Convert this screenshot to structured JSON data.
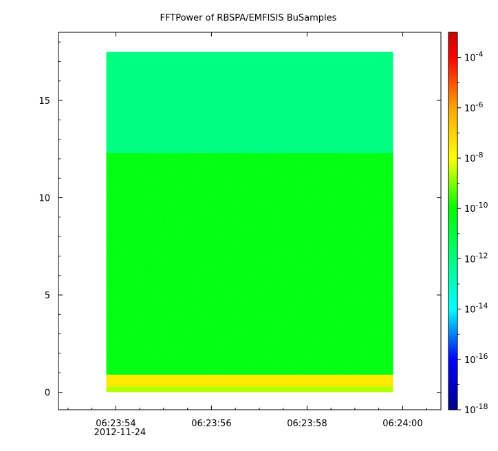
{
  "chart_data": {
    "type": "heatmap",
    "title": "FFTPower of RBSPA/EMFISIS  BuSamples",
    "xlabel": "",
    "ylabel": "",
    "x_ticks": [
      {
        "label": "06:23:54",
        "sublabel": "2012-11-24",
        "t": 54
      },
      {
        "label": "06:23:56",
        "t": 56
      },
      {
        "label": "06:23:58",
        "t": 58
      },
      {
        "label": "06:24:00",
        "t": 60
      }
    ],
    "xlim": [
      "06:23:52.8",
      "06:24:00.8"
    ],
    "ylim": [
      -0.9,
      18.5
    ],
    "y_ticks": [
      0,
      5,
      10,
      15
    ],
    "data_extent": {
      "x": [
        "06:23:53.8",
        "06:23:59.8"
      ],
      "y": [
        0,
        17.5
      ]
    },
    "colorbar": {
      "scale": "log",
      "range": [
        1e-18,
        0.001
      ],
      "ticks": [
        {
          "base": "10",
          "exp": "-4",
          "value": 0.0001
        },
        {
          "base": "10",
          "exp": "-6",
          "value": 1e-06
        },
        {
          "base": "10",
          "exp": "-8",
          "value": 1e-08
        },
        {
          "base": "10",
          "exp": "-10",
          "value": 1e-10
        },
        {
          "base": "10",
          "exp": "-12",
          "value": 1e-12
        },
        {
          "base": "10",
          "exp": "-14",
          "value": 1e-14
        },
        {
          "base": "10",
          "exp": "-16",
          "value": 1e-16
        },
        {
          "base": "10",
          "exp": "-18",
          "value": 1e-18
        }
      ]
    },
    "regions": [
      {
        "name": "upper band",
        "y_range": [
          12.3,
          17.5
        ],
        "log10_power": -12.0
      },
      {
        "name": "middle band",
        "y_range": [
          0.9,
          12.3
        ],
        "log10_power": -10.3
      },
      {
        "name": "low-frequency enhancement",
        "y_range": [
          0.3,
          0.9
        ],
        "log10_power": -7.5
      },
      {
        "name": "bottom",
        "y_range": [
          0,
          0.3
        ],
        "log10_power": -8.6
      }
    ],
    "colors": {
      "c_1e-18": "#00008b",
      "c_1e-16": "#0000ff",
      "c_1e-14": "#00ffff",
      "c_1e-12": "#00ff80",
      "c_1e-10": "#00ff00",
      "c_1e-8": "#ffff00",
      "c_1e-6": "#ffa500",
      "c_1e-4": "#ff0000",
      "c_1e-3": "#cc0000"
    }
  }
}
